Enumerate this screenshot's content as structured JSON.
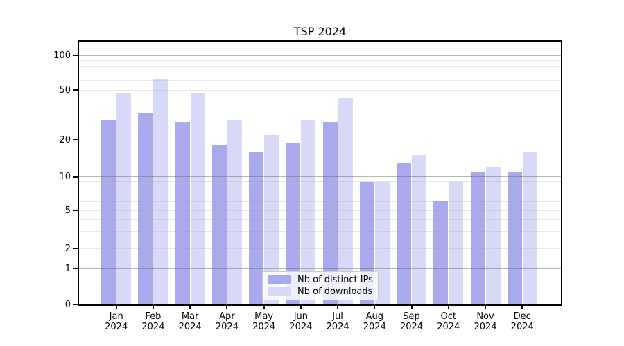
{
  "title": "TSP 2024",
  "y_axis": {
    "tick_labels": [
      "100",
      "50",
      "20",
      "10",
      "5",
      "2",
      "1",
      "0"
    ],
    "tick_values": [
      100,
      50,
      20,
      10,
      5,
      2,
      1,
      0
    ]
  },
  "x_axis": {
    "months": [
      "Jan",
      "Feb",
      "Mar",
      "Apr",
      "May",
      "Jun",
      "Jul",
      "Aug",
      "Sep",
      "Oct",
      "Nov",
      "Dec"
    ],
    "year": "2024"
  },
  "legend": {
    "items": [
      {
        "label": "Nb of distinct IPs",
        "color": "#a9a9ee"
      },
      {
        "label": "Nb of downloads",
        "color": "#d8d8f7"
      }
    ]
  },
  "colors": {
    "distinct_ips": "#a9a9ee",
    "downloads": "#d8d8f7",
    "grid_major": "rgba(110,110,110,0.5)",
    "grid_minor": "rgba(160,160,160,0.25)"
  },
  "chart_data": {
    "type": "bar",
    "title": "TSP 2024",
    "categories": [
      "Jan 2024",
      "Feb 2024",
      "Mar 2024",
      "Apr 2024",
      "May 2024",
      "Jun 2024",
      "Jul 2024",
      "Aug 2024",
      "Sep 2024",
      "Oct 2024",
      "Nov 2024",
      "Dec 2024"
    ],
    "series": [
      {
        "name": "Nb of distinct IPs",
        "color": "#a9a9ee",
        "values": [
          29,
          33,
          28,
          18,
          16,
          19,
          28,
          9,
          13,
          6,
          11,
          11
        ]
      },
      {
        "name": "Nb of downloads",
        "color": "#d8d8f7",
        "values": [
          47,
          62,
          47,
          29,
          22,
          29,
          43,
          9,
          15,
          9,
          12,
          16
        ]
      }
    ],
    "yscale": "symlog",
    "yticks": [
      0,
      1,
      2,
      5,
      10,
      20,
      50,
      100
    ],
    "minor_gridline_values": [
      2,
      3,
      4,
      5,
      6,
      7,
      8,
      9,
      20,
      30,
      40,
      50,
      60,
      70,
      80,
      90
    ],
    "major_gridline_values": [
      100,
      10,
      1
    ],
    "ylim": [
      0,
      130
    ],
    "grid": true,
    "legend_position": "lower center"
  }
}
